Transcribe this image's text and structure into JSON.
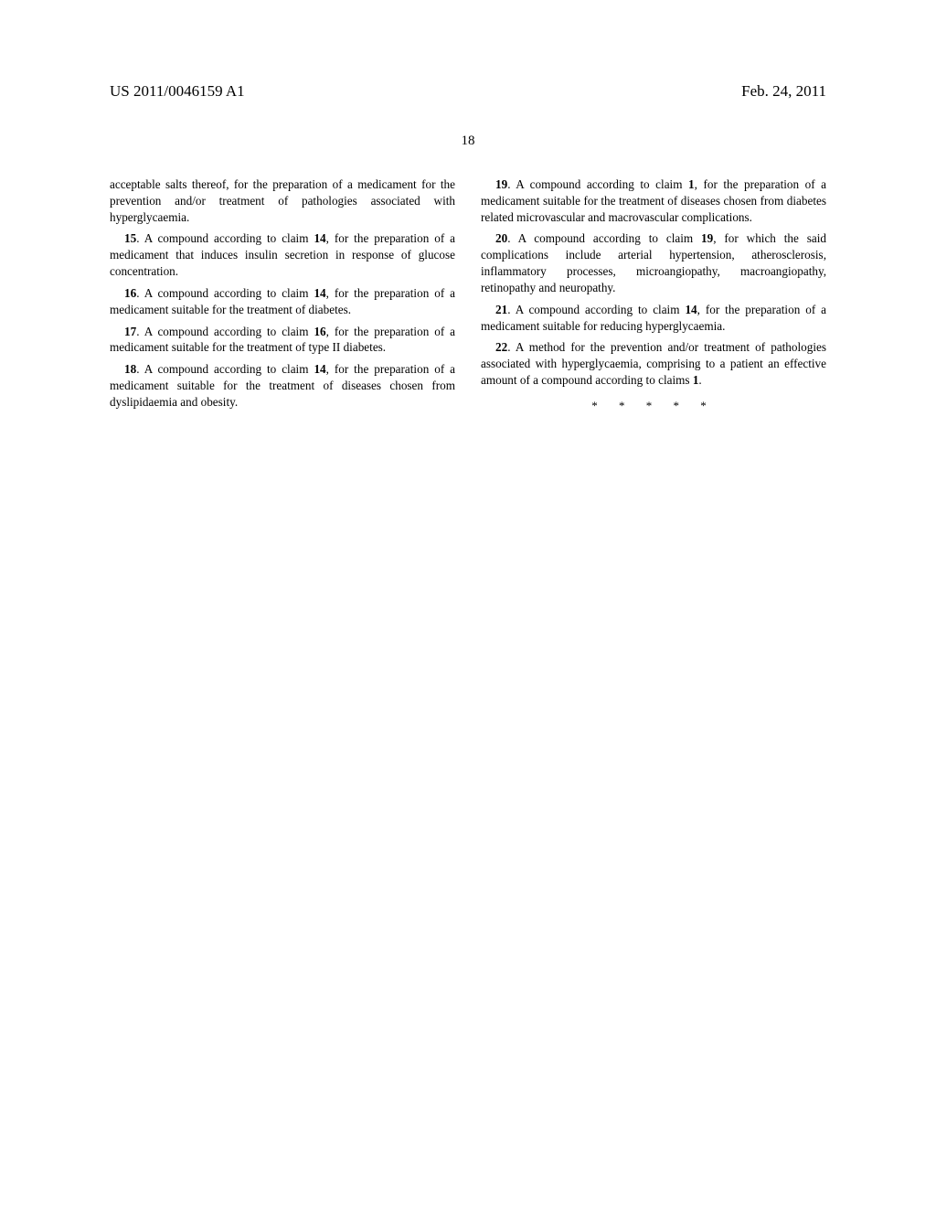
{
  "header": {
    "pub_number": "US 2011/0046159 A1",
    "pub_date": "Feb. 24, 2011"
  },
  "page_number": "18",
  "left_col": {
    "frag_top": "acceptable salts thereof, for the preparation of a medicament for the prevention and/or treatment of pathologies associated with hyperglycaemia.",
    "c15_num": "15",
    "c15_text": ". A compound according to claim ",
    "c15_ref": "14",
    "c15_tail": ", for the preparation of a medicament that induces insulin secretion in response of glucose concentration.",
    "c16_num": "16",
    "c16_text": ". A compound according to claim ",
    "c16_ref": "14",
    "c16_tail": ", for the preparation of a medicament suitable for the treatment of diabetes.",
    "c17_num": "17",
    "c17_text": ". A compound according to claim ",
    "c17_ref": "16",
    "c17_tail": ", for the preparation of a medicament suitable for the treatment of type II diabetes.",
    "c18_num": "18",
    "c18_text": ". A compound according to claim ",
    "c18_ref": "14",
    "c18_tail": ", for the preparation of a medicament suitable for the treatment of diseases chosen from dyslipidaemia and obesity."
  },
  "right_col": {
    "c19_num": "19",
    "c19_text": ". A compound according to claim ",
    "c19_ref": "1",
    "c19_tail": ", for the preparation of a medicament suitable for the treatment of diseases chosen from diabetes related microvascular and macrovascular complications.",
    "c20_num": "20",
    "c20_text": ". A compound according to claim ",
    "c20_ref": "19",
    "c20_tail": ", for which the said complications include arterial hypertension, atherosclerosis, inflammatory processes, microangiopathy, macroangiopathy, retinopathy and neuropathy.",
    "c21_num": "21",
    "c21_text": ". A compound according to claim ",
    "c21_ref": "14",
    "c21_tail": ", for the preparation of a medicament suitable for reducing hyperglycaemia.",
    "c22_num": "22",
    "c22_text": ". A method for the prevention and/or treatment of pathologies associated with hyperglycaemia, comprising to a patient an effective amount of a compound according to claims ",
    "c22_ref": "1",
    "c22_tail": ".",
    "end_marks": "*   *   *   *   *"
  }
}
